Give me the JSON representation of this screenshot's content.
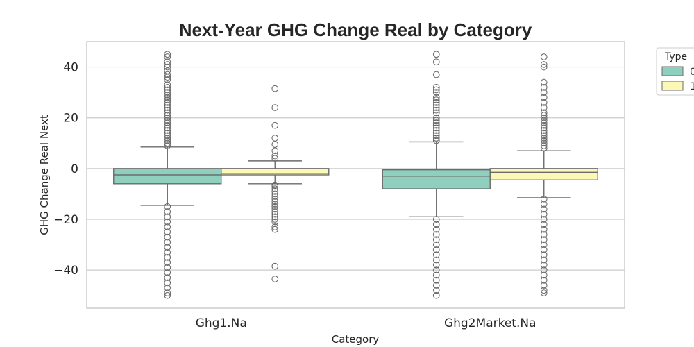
{
  "chart_data": {
    "type": "boxplot",
    "title": "Next-Year GHG Change Real by Category",
    "xlabel": "Category",
    "ylabel": "GHG Change Real Next",
    "ylim": [
      -55,
      50
    ],
    "yticks": [
      -40,
      -20,
      0,
      20,
      40
    ],
    "grid": true,
    "categories": [
      "Ghg1.Na",
      "Ghg2Market.Na"
    ],
    "legend": {
      "title": "Type",
      "placement": "outside-top-right",
      "entries": [
        {
          "label": "0",
          "color": "#8fcfbd"
        },
        {
          "label": "1",
          "color": "#fbf9b5"
        }
      ]
    },
    "series": [
      {
        "name": "0",
        "color": "#8fcfbd",
        "boxes": [
          {
            "category": "Ghg1.Na",
            "whisker_low": -14.5,
            "q1": -6,
            "median": -2.5,
            "q3": 0,
            "whisker_high": 8.5,
            "outliers_high": [
              9,
              10,
              11,
              12,
              13,
              14,
              15,
              16,
              17,
              18,
              19,
              20,
              21,
              22,
              23,
              24,
              25,
              26,
              27,
              28,
              29,
              30,
              31,
              32,
              33,
              35,
              36,
              37,
              38.5,
              40,
              41,
              42,
              44,
              45
            ],
            "outliers_low": [
              -15,
              -17,
              -19,
              -21,
              -23,
              -25,
              -27,
              -29,
              -31,
              -33,
              -35,
              -37,
              -39,
              -41,
              -43,
              -45,
              -47,
              -49,
              -50
            ]
          },
          {
            "category": "Ghg2Market.Na",
            "whisker_low": -19,
            "q1": -8,
            "median": -3,
            "q3": -0.5,
            "whisker_high": 10.5,
            "outliers_high": [
              11,
              12,
              13,
              14,
              15,
              16,
              17,
              18,
              19,
              20,
              22,
              23,
              24,
              25,
              26,
              27,
              28,
              30,
              31,
              32,
              37,
              42,
              45
            ],
            "outliers_low": [
              -20,
              -22,
              -24,
              -26,
              -28,
              -30,
              -32,
              -34,
              -36,
              -38,
              -40,
              -42,
              -44,
              -46,
              -48,
              -50
            ]
          }
        ]
      },
      {
        "name": "1",
        "color": "#fbf9b5",
        "boxes": [
          {
            "category": "Ghg1.Na",
            "whisker_low": -6,
            "q1": -2.5,
            "median": -2,
            "q3": 0,
            "whisker_high": 3,
            "outliers_high": [
              4,
              5,
              7,
              9.5,
              12,
              17,
              24,
              31.5
            ],
            "outliers_low": [
              -6.5,
              -7,
              -8,
              -9,
              -10,
              -11,
              -12,
              -13,
              -14,
              -15,
              -16,
              -17,
              -18,
              -19,
              -20,
              -21,
              -23,
              -24,
              -38.5,
              -43.5
            ]
          },
          {
            "category": "Ghg2Market.Na",
            "whisker_low": -11.5,
            "q1": -4.5,
            "median": -1.5,
            "q3": 0,
            "whisker_high": 7,
            "outliers_high": [
              8,
              9,
              10,
              11,
              12,
              13,
              14,
              15,
              16,
              17,
              18,
              19,
              20,
              21,
              22,
              24,
              26,
              28,
              30,
              32,
              34,
              40,
              41,
              44
            ],
            "outliers_low": [
              -12,
              -14,
              -16,
              -18,
              -20,
              -22,
              -24,
              -26,
              -28,
              -30,
              -32,
              -34,
              -36,
              -38,
              -40,
              -42,
              -44,
              -46,
              -48,
              -49
            ]
          }
        ]
      }
    ]
  }
}
